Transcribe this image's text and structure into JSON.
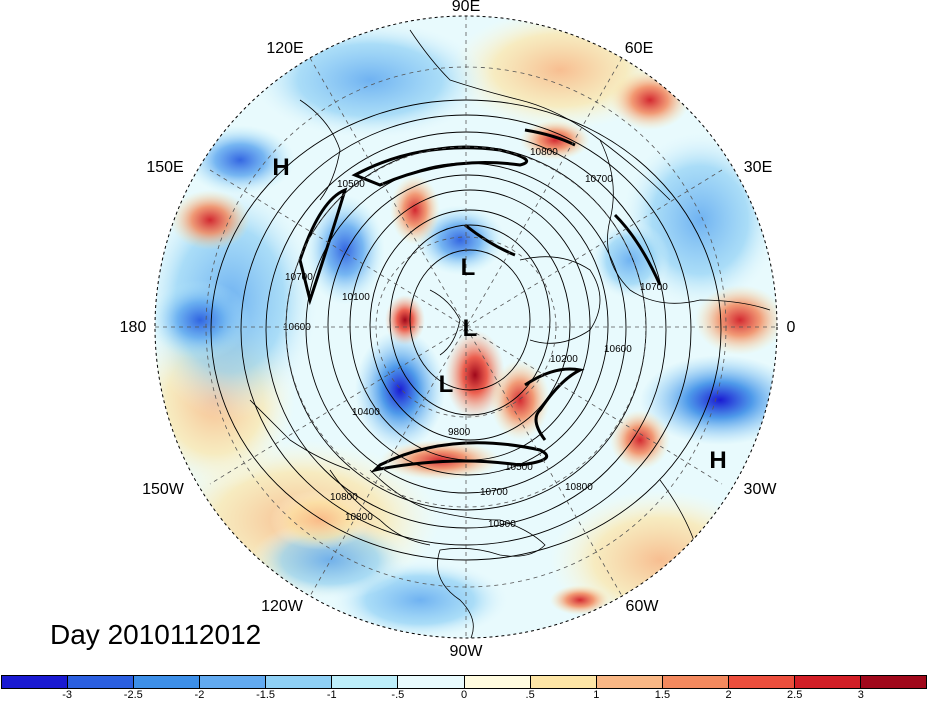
{
  "map": {
    "projection": "north-polar-stereographic",
    "longitude_labels": {
      "lon_0": "0",
      "lon_30e": "30E",
      "lon_60e": "60E",
      "lon_90e": "90E",
      "lon_120e": "120E",
      "lon_150e": "150E",
      "lon_180": "180",
      "lon_150w": "150W",
      "lon_120w": "120W",
      "lon_90w": "90W",
      "lon_60w": "60W",
      "lon_30w": "30W"
    },
    "pressure_centers": {
      "high_west": "H",
      "low_north": "L",
      "low_center": "L",
      "low_south": "L",
      "high_east": "H"
    },
    "contour_labels": {
      "c1": "10800",
      "c2": "10700",
      "c3": "10600",
      "c4": "10500",
      "c5": "10200",
      "c6": "10100",
      "c7": "10400",
      "c8": "9800",
      "c9": "10500",
      "c10": "10700",
      "c11": "10800",
      "c12": "10800",
      "c13": "10900",
      "c14": "10700",
      "c15": "10800",
      "c16": "10700",
      "c17": "10600"
    },
    "grid_style": "dashed",
    "coastlines": "on"
  },
  "title": {
    "day_label": "Day 2010112012"
  },
  "colorbar": {
    "colors": [
      "#1a1ad2",
      "#2b5fe0",
      "#3d8fe8",
      "#62aaf0",
      "#8fd0f5",
      "#bdeefa",
      "#e8fafd",
      "#fffbdf",
      "#fde5a6",
      "#f9b785",
      "#f3895e",
      "#ec4e3c",
      "#d21e26",
      "#a0081b"
    ],
    "tick_labels": [
      "-3",
      "-2.5",
      "-2",
      "-1.5",
      "-1",
      "-.5",
      "0",
      ".5",
      "1",
      "1.5",
      "2",
      "2.5",
      "3"
    ]
  }
}
